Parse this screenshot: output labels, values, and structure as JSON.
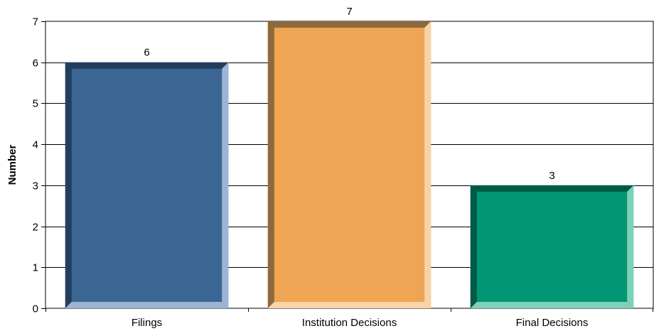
{
  "chart_data": {
    "type": "bar",
    "categories": [
      "Filings",
      "Institution Decisions",
      "Final Decisions"
    ],
    "values": [
      6,
      7,
      3
    ],
    "data_labels": [
      "6",
      "7",
      "3"
    ],
    "title": "",
    "xlabel": "",
    "ylabel": "Number",
    "ylim": [
      0,
      7
    ],
    "yticks": [
      0,
      1,
      2,
      3,
      4,
      5,
      6,
      7
    ],
    "grid": true,
    "legend": "none",
    "colors": [
      {
        "face": "#3b6694",
        "top": "#233e5c",
        "left": "#233e5c",
        "right": "#9db5d3",
        "bottom": "#9db5d3"
      },
      {
        "face": "#efa553",
        "top": "#8c6a3c",
        "left": "#8c6a3c",
        "right": "#f7d3a8",
        "bottom": "#f7d3a8"
      },
      {
        "face": "#009673",
        "top": "#005a45",
        "left": "#005a45",
        "right": "#7fd0bb",
        "bottom": "#7fd0bb"
      }
    ]
  }
}
